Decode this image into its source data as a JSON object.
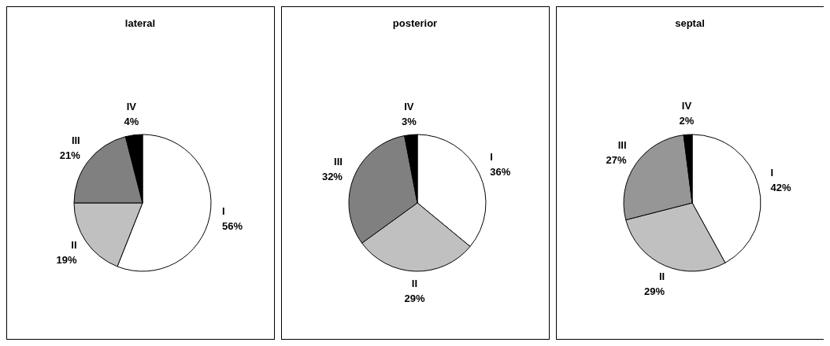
{
  "chart_data": [
    {
      "type": "pie",
      "title": "lateral",
      "categories": [
        "I",
        "II",
        "III",
        "IV"
      ],
      "values": [
        56,
        19,
        21,
        4
      ],
      "colors": [
        "#ffffff",
        "#c0c0c0",
        "#808080",
        "#000000"
      ],
      "value_labels": [
        "56%",
        "19%",
        "21%",
        "4%"
      ]
    },
    {
      "type": "pie",
      "title": "posterior",
      "categories": [
        "I",
        "II",
        "III",
        "IV"
      ],
      "values": [
        36,
        29,
        32,
        3
      ],
      "colors": [
        "#ffffff",
        "#c0c0c0",
        "#808080",
        "#000000"
      ],
      "value_labels": [
        "36%",
        "29%",
        "32%",
        "3%"
      ]
    },
    {
      "type": "pie",
      "title": "septal",
      "categories": [
        "I",
        "II",
        "III",
        "IV"
      ],
      "values": [
        42,
        29,
        27,
        2
      ],
      "colors": [
        "#ffffff",
        "#c0c0c0",
        "#969696",
        "#000000"
      ],
      "value_labels": [
        "42%",
        "29%",
        "27%",
        "2%"
      ]
    }
  ]
}
